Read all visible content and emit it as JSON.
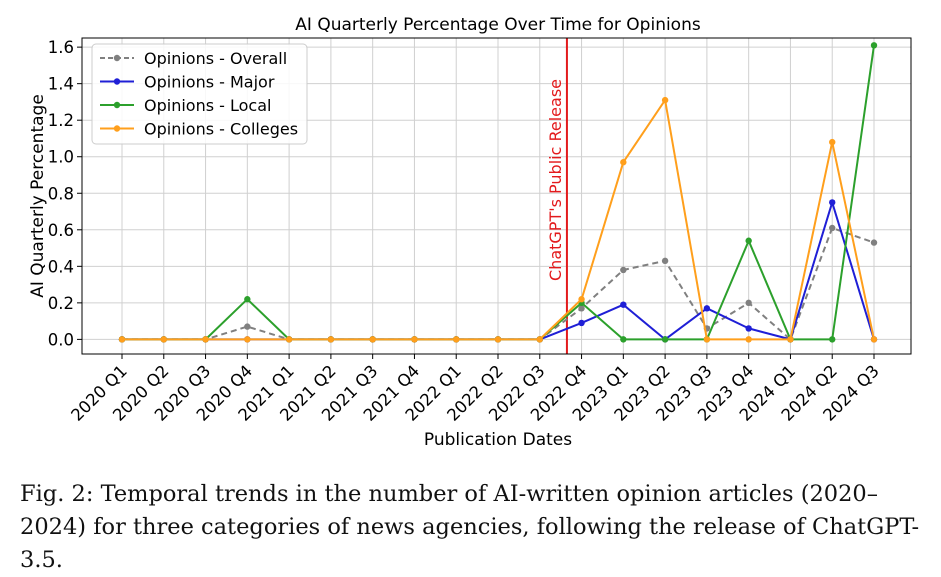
{
  "chart_data": {
    "type": "line",
    "title": "AI Quarterly Percentage Over Time for Opinions",
    "xlabel": "Publication Dates",
    "ylabel": "AI Quarterly Percentage",
    "categories": [
      "2020 Q1",
      "2020 Q2",
      "2020 Q3",
      "2020 Q4",
      "2021 Q1",
      "2021 Q2",
      "2021 Q3",
      "2021 Q4",
      "2022 Q1",
      "2022 Q2",
      "2022 Q3",
      "2022 Q4",
      "2023 Q1",
      "2023 Q2",
      "2023 Q3",
      "2023 Q4",
      "2024 Q1",
      "2024 Q2",
      "2024 Q3"
    ],
    "ylim": [
      -0.08,
      1.65
    ],
    "yticks": [
      0.0,
      0.2,
      0.4,
      0.6,
      0.8,
      1.0,
      1.2,
      1.4,
      1.6
    ],
    "ytick_labels": [
      "0.0",
      "0.2",
      "0.4",
      "0.6",
      "0.8",
      "1.0",
      "1.2",
      "1.4",
      "1.6"
    ],
    "grid": true,
    "legend_position": "top-left",
    "series": [
      {
        "name": "Opinions - Overall",
        "color": "#808080",
        "dashed": true,
        "values": [
          0,
          0,
          0,
          0.07,
          0,
          0,
          0,
          0,
          0,
          0,
          0,
          0.17,
          0.38,
          0.43,
          0.06,
          0.2,
          0,
          0.61,
          0.53
        ]
      },
      {
        "name": "Opinions - Major",
        "color": "#1f1fd6",
        "dashed": false,
        "values": [
          0,
          0,
          0,
          0,
          0,
          0,
          0,
          0,
          0,
          0,
          0,
          0.09,
          0.19,
          0,
          0.17,
          0.06,
          0,
          0.75,
          0
        ]
      },
      {
        "name": "Opinions - Local",
        "color": "#2ca02c",
        "dashed": false,
        "values": [
          0,
          0,
          0,
          0.22,
          0,
          0,
          0,
          0,
          0,
          0,
          0,
          0.2,
          0,
          0,
          0,
          0.54,
          0,
          0,
          1.61
        ]
      },
      {
        "name": "Opinions - Colleges",
        "color": "#ff9f1c",
        "dashed": false,
        "values": [
          0,
          0,
          0,
          0,
          0,
          0,
          0,
          0,
          0,
          0,
          0,
          0.22,
          0.97,
          1.31,
          0,
          0,
          0,
          1.08,
          0
        ]
      }
    ],
    "annotation": {
      "text": "ChatGPT's Public Release",
      "x_between": [
        "2022 Q3",
        "2022 Q4"
      ],
      "x_fraction": 0.65,
      "color": "#e31a1c"
    }
  },
  "caption": "Fig. 2: Temporal trends in the number of AI-written opinion articles (2020–2024) for three categories of news agencies, following the release of ChatGPT-3.5."
}
